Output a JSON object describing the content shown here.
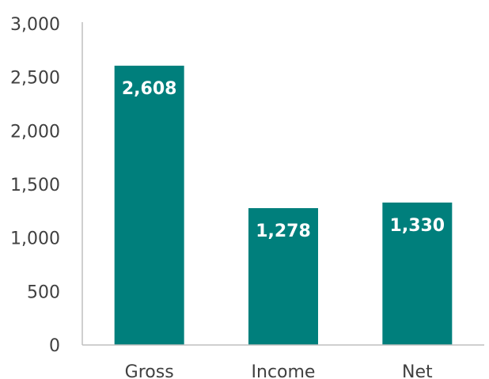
{
  "chart_data": {
    "type": "bar",
    "title": "",
    "xlabel": "",
    "ylabel": "",
    "categories": [
      "Gross",
      "Income",
      "Net"
    ],
    "values": [
      2608,
      1278,
      1330
    ],
    "data_labels": [
      "2,608",
      "1,278",
      "1,330"
    ],
    "ylim": [
      0,
      3000
    ],
    "yticks": [
      0,
      500,
      1000,
      1500,
      2000,
      2500,
      3000
    ],
    "ytick_labels": [
      "0",
      "500",
      "1,000",
      "1,500",
      "2,000",
      "2,500",
      "3,000"
    ],
    "grid": false,
    "legend": "none",
    "bar_color": "#007f7c",
    "axis_color": "#bfbfbf"
  }
}
